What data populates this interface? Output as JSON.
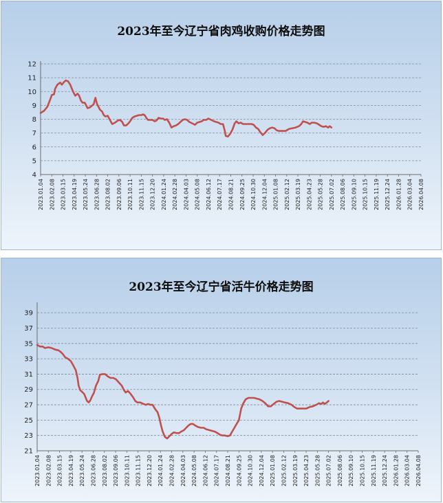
{
  "chart_data": [
    {
      "type": "line",
      "title": "2023年至今辽宁省肉鸡收购价格走势图",
      "yticks": [
        "4",
        "5",
        "6",
        "7",
        "8",
        "9",
        "10",
        "11",
        "12"
      ],
      "ylim": [
        4,
        12
      ],
      "grid": true,
      "xticks": [
        "2023.01.04",
        "2023.02.08",
        "2023.03.15",
        "2023.04.19",
        "2023.05.24",
        "2023.06.28",
        "2023.08.02",
        "2023.09.06",
        "2023.10.11",
        "2023.11.15",
        "2023.12.20",
        "2024.01.24",
        "2024.02.28",
        "2024.04.03",
        "2024.05.08",
        "2024.06.12",
        "2024.07.17",
        "2024.08.21",
        "2024.09.25",
        "2024.10.30",
        "2024.12.04",
        "2025.01.08",
        "2025.02.12",
        "2025.03.19",
        "2025.04.23",
        "2025.05.28",
        "2025.07.02",
        "2025.08.06",
        "2025.09.10",
        "2025.10.15",
        "2025.11.19",
        "2025.12.24",
        "2026.01.28",
        "2026.03.04",
        "2026.04.08"
      ],
      "color": "#c0504d",
      "points": [
        [
          0,
          8.45
        ],
        [
          0.3,
          8.6
        ],
        [
          0.6,
          8.9
        ],
        [
          0.85,
          9.4
        ],
        [
          1.0,
          9.75
        ],
        [
          1.2,
          9.8
        ],
        [
          1.3,
          10.2
        ],
        [
          1.5,
          10.5
        ],
        [
          1.75,
          10.65
        ],
        [
          1.9,
          10.5
        ],
        [
          2.1,
          10.7
        ],
        [
          2.25,
          10.8
        ],
        [
          2.45,
          10.75
        ],
        [
          2.65,
          10.5
        ],
        [
          2.9,
          10.0
        ],
        [
          3.1,
          9.7
        ],
        [
          3.3,
          9.85
        ],
        [
          3.45,
          9.7
        ],
        [
          3.6,
          9.35
        ],
        [
          3.75,
          9.2
        ],
        [
          3.95,
          9.2
        ],
        [
          4.2,
          8.8
        ],
        [
          4.4,
          8.85
        ],
        [
          4.55,
          8.95
        ],
        [
          4.75,
          9.1
        ],
        [
          4.9,
          9.55
        ],
        [
          5.05,
          9.1
        ],
        [
          5.3,
          8.7
        ],
        [
          5.5,
          8.55
        ],
        [
          5.65,
          8.3
        ],
        [
          5.8,
          8.2
        ],
        [
          6.0,
          8.25
        ],
        [
          6.2,
          7.95
        ],
        [
          6.4,
          7.65
        ],
        [
          6.65,
          7.75
        ],
        [
          6.9,
          7.9
        ],
        [
          7.1,
          7.95
        ],
        [
          7.3,
          7.8
        ],
        [
          7.45,
          7.55
        ],
        [
          7.65,
          7.55
        ],
        [
          7.85,
          7.7
        ],
        [
          8.0,
          7.85
        ],
        [
          8.2,
          8.1
        ],
        [
          8.4,
          8.2
        ],
        [
          8.6,
          8.25
        ],
        [
          8.8,
          8.3
        ],
        [
          9.0,
          8.3
        ],
        [
          9.15,
          8.35
        ],
        [
          9.3,
          8.3
        ],
        [
          9.45,
          8.1
        ],
        [
          9.6,
          7.95
        ],
        [
          9.8,
          7.95
        ],
        [
          10.0,
          7.95
        ],
        [
          10.2,
          7.85
        ],
        [
          10.35,
          7.9
        ],
        [
          10.55,
          8.1
        ],
        [
          10.75,
          8.05
        ],
        [
          10.95,
          8.05
        ],
        [
          11.1,
          7.95
        ],
        [
          11.3,
          8.0
        ],
        [
          11.5,
          7.75
        ],
        [
          11.7,
          7.4
        ],
        [
          11.9,
          7.5
        ],
        [
          12.1,
          7.55
        ],
        [
          12.3,
          7.65
        ],
        [
          12.5,
          7.8
        ],
        [
          12.7,
          7.95
        ],
        [
          12.9,
          8.0
        ],
        [
          13.1,
          7.95
        ],
        [
          13.3,
          7.8
        ],
        [
          13.55,
          7.7
        ],
        [
          13.8,
          7.6
        ],
        [
          14.0,
          7.75
        ],
        [
          14.2,
          7.8
        ],
        [
          14.4,
          7.85
        ],
        [
          14.6,
          7.95
        ],
        [
          14.8,
          7.95
        ],
        [
          15.0,
          8.05
        ],
        [
          15.25,
          7.95
        ],
        [
          15.5,
          7.85
        ],
        [
          15.7,
          7.8
        ],
        [
          15.9,
          7.75
        ],
        [
          16.1,
          7.65
        ],
        [
          16.3,
          7.65
        ],
        [
          16.45,
          7.2
        ],
        [
          16.55,
          6.8
        ],
        [
          16.75,
          6.75
        ],
        [
          16.95,
          6.95
        ],
        [
          17.15,
          7.25
        ],
        [
          17.35,
          7.7
        ],
        [
          17.5,
          7.85
        ],
        [
          17.7,
          7.7
        ],
        [
          17.9,
          7.75
        ],
        [
          18.1,
          7.65
        ],
        [
          18.3,
          7.65
        ],
        [
          18.6,
          7.65
        ],
        [
          18.85,
          7.65
        ],
        [
          19.05,
          7.6
        ],
        [
          19.25,
          7.4
        ],
        [
          19.45,
          7.3
        ],
        [
          19.65,
          7.05
        ],
        [
          19.85,
          6.85
        ],
        [
          20.05,
          7.0
        ],
        [
          20.3,
          7.25
        ],
        [
          20.5,
          7.35
        ],
        [
          20.7,
          7.4
        ],
        [
          20.9,
          7.35
        ],
        [
          21.1,
          7.2
        ],
        [
          21.3,
          7.15
        ],
        [
          21.6,
          7.15
        ],
        [
          21.9,
          7.15
        ],
        [
          22.2,
          7.3
        ],
        [
          22.5,
          7.35
        ],
        [
          22.8,
          7.4
        ],
        [
          23.1,
          7.5
        ],
        [
          23.3,
          7.65
        ],
        [
          23.45,
          7.85
        ],
        [
          23.65,
          7.8
        ],
        [
          23.85,
          7.75
        ],
        [
          24.05,
          7.65
        ],
        [
          24.25,
          7.75
        ],
        [
          24.45,
          7.75
        ],
        [
          24.7,
          7.7
        ],
        [
          24.9,
          7.6
        ],
        [
          25.1,
          7.5
        ],
        [
          25.3,
          7.45
        ],
        [
          25.5,
          7.5
        ],
        [
          25.7,
          7.4
        ],
        [
          25.85,
          7.5
        ],
        [
          26.0,
          7.4
        ]
      ]
    },
    {
      "type": "line",
      "title": "2023年至今辽宁省活牛价格走势图",
      "yticks": [
        "21",
        "23",
        "25",
        "27",
        "29",
        "31",
        "33",
        "35",
        "37",
        "39"
      ],
      "ylim": [
        21,
        40
      ],
      "grid": true,
      "xticks": [
        "2023.01.04",
        "2023.02.08",
        "2023.03.15",
        "2023.04.19",
        "2023.05.24",
        "2023.06.28",
        "2023.08.02",
        "2023.09.06",
        "2023.10.11",
        "2023.11.15",
        "2023.12.20",
        "2024.01.24",
        "2024.02.28",
        "2024.04.03",
        "2024.05.08",
        "2024.06.12",
        "2024.07.17",
        "2024.08.21",
        "2024.09.25",
        "2024.10.30",
        "2024.12.04",
        "2025.01.08",
        "2025.02.12",
        "2025.03.19",
        "2025.04.23",
        "2025.05.28",
        "2025.07.02",
        "2025.08.06",
        "2025.09.10",
        "2025.10.15",
        "2025.11.19",
        "2025.12.24",
        "2026.01.28",
        "2026.03.04",
        "2026.04.08"
      ],
      "color": "#c0504d",
      "points": [
        [
          0,
          34.8
        ],
        [
          0.25,
          34.6
        ],
        [
          0.5,
          34.6
        ],
        [
          0.7,
          34.4
        ],
        [
          1.0,
          34.5
        ],
        [
          1.3,
          34.4
        ],
        [
          1.6,
          34.2
        ],
        [
          1.9,
          34.1
        ],
        [
          2.1,
          33.9
        ],
        [
          2.3,
          33.6
        ],
        [
          2.5,
          33.2
        ],
        [
          2.75,
          33.0
        ],
        [
          3.0,
          32.7
        ],
        [
          3.2,
          32.2
        ],
        [
          3.45,
          31.5
        ],
        [
          3.6,
          30.5
        ],
        [
          3.7,
          29.5
        ],
        [
          3.85,
          28.9
        ],
        [
          4.0,
          28.7
        ],
        [
          4.2,
          28.4
        ],
        [
          4.45,
          27.5
        ],
        [
          4.6,
          27.3
        ],
        [
          4.75,
          27.6
        ],
        [
          4.9,
          28.1
        ],
        [
          5.05,
          28.5
        ],
        [
          5.25,
          29.5
        ],
        [
          5.45,
          30.1
        ],
        [
          5.6,
          30.9
        ],
        [
          5.8,
          31.0
        ],
        [
          6.05,
          31.0
        ],
        [
          6.3,
          30.7
        ],
        [
          6.55,
          30.5
        ],
        [
          6.8,
          30.5
        ],
        [
          7.05,
          30.3
        ],
        [
          7.3,
          29.9
        ],
        [
          7.55,
          29.5
        ],
        [
          7.75,
          28.9
        ],
        [
          7.9,
          28.6
        ],
        [
          8.1,
          28.8
        ],
        [
          8.3,
          28.5
        ],
        [
          8.55,
          28.0
        ],
        [
          8.75,
          27.5
        ],
        [
          8.95,
          27.3
        ],
        [
          9.2,
          27.3
        ],
        [
          9.5,
          27.1
        ],
        [
          9.7,
          27.0
        ],
        [
          9.9,
          27.1
        ],
        [
          10.1,
          27.0
        ],
        [
          10.3,
          27.0
        ],
        [
          10.5,
          26.5
        ],
        [
          10.75,
          26.0
        ],
        [
          10.9,
          25.3
        ],
        [
          11.05,
          24.3
        ],
        [
          11.2,
          23.5
        ],
        [
          11.4,
          22.8
        ],
        [
          11.6,
          22.6
        ],
        [
          11.8,
          22.9
        ],
        [
          12.0,
          23.2
        ],
        [
          12.2,
          23.4
        ],
        [
          12.45,
          23.3
        ],
        [
          12.65,
          23.3
        ],
        [
          12.85,
          23.5
        ],
        [
          13.1,
          23.7
        ],
        [
          13.3,
          24.0
        ],
        [
          13.5,
          24.3
        ],
        [
          13.7,
          24.5
        ],
        [
          13.9,
          24.5
        ],
        [
          14.1,
          24.3
        ],
        [
          14.35,
          24.1
        ],
        [
          14.6,
          24.0
        ],
        [
          14.85,
          24.0
        ],
        [
          15.1,
          23.8
        ],
        [
          15.35,
          23.7
        ],
        [
          15.6,
          23.6
        ],
        [
          15.85,
          23.5
        ],
        [
          16.1,
          23.3
        ],
        [
          16.3,
          23.1
        ],
        [
          16.5,
          23.0
        ],
        [
          16.75,
          23.0
        ],
        [
          17.0,
          22.9
        ],
        [
          17.2,
          23.0
        ],
        [
          17.4,
          23.5
        ],
        [
          17.6,
          24.0
        ],
        [
          17.8,
          24.5
        ],
        [
          18.0,
          25.0
        ],
        [
          18.2,
          26.5
        ],
        [
          18.4,
          27.2
        ],
        [
          18.6,
          27.7
        ],
        [
          18.85,
          27.9
        ],
        [
          19.1,
          27.9
        ],
        [
          19.35,
          27.9
        ],
        [
          19.6,
          27.8
        ],
        [
          19.85,
          27.7
        ],
        [
          20.1,
          27.5
        ],
        [
          20.35,
          27.2
        ],
        [
          20.6,
          26.8
        ],
        [
          20.85,
          26.8
        ],
        [
          21.1,
          27.1
        ],
        [
          21.35,
          27.4
        ],
        [
          21.6,
          27.5
        ],
        [
          21.85,
          27.4
        ],
        [
          22.1,
          27.3
        ],
        [
          22.4,
          27.2
        ],
        [
          22.7,
          27.0
        ],
        [
          22.95,
          26.7
        ],
        [
          23.2,
          26.5
        ],
        [
          23.45,
          26.5
        ],
        [
          23.75,
          26.5
        ],
        [
          24.0,
          26.5
        ],
        [
          24.3,
          26.7
        ],
        [
          24.6,
          26.8
        ],
        [
          24.9,
          27.0
        ],
        [
          25.15,
          27.2
        ],
        [
          25.35,
          27.1
        ],
        [
          25.5,
          27.3
        ],
        [
          25.65,
          27.1
        ],
        [
          25.85,
          27.3
        ],
        [
          26.0,
          27.5
        ]
      ]
    }
  ]
}
